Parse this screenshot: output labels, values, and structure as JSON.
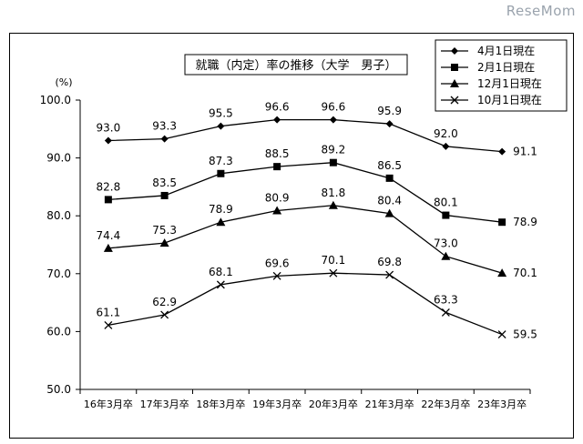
{
  "watermark": "ReseMom",
  "chart_data": {
    "type": "line",
    "title": "就職（内定）率の推移（大学　男子）",
    "yunit": "(%)",
    "ylim": [
      50,
      100
    ],
    "yticks": [
      50,
      60,
      70,
      80,
      90,
      100
    ],
    "grid": false,
    "legend_position": "top-right",
    "categories": [
      "16年3月卒",
      "17年3月卒",
      "18年3月卒",
      "19年3月卒",
      "20年3月卒",
      "21年3月卒",
      "22年3月卒",
      "23年3月卒"
    ],
    "series": [
      {
        "name": "4月1日現在",
        "marker": "diamond",
        "values": [
          93.0,
          93.3,
          95.5,
          96.6,
          96.6,
          95.9,
          92.0,
          91.1
        ],
        "labels": [
          "93.0",
          "93.3",
          "95.5",
          "96.6",
          "96.6",
          "95.9",
          "92.0",
          "91.1"
        ]
      },
      {
        "name": "2月1日現在",
        "marker": "square",
        "values": [
          82.8,
          83.5,
          87.3,
          88.5,
          89.2,
          86.5,
          80.1,
          78.9
        ],
        "labels": [
          "82.8",
          "83.5",
          "87.3",
          "88.5",
          "89.2",
          "86.5",
          "80.1",
          "78.9"
        ]
      },
      {
        "name": "12月1日現在",
        "marker": "triangle",
        "values": [
          74.4,
          75.3,
          78.9,
          80.9,
          81.8,
          80.4,
          73.0,
          70.1
        ],
        "labels": [
          "74.4",
          "75.3",
          "78.9",
          "80.9",
          "81.8",
          "80.4",
          "73.0",
          "70.1"
        ]
      },
      {
        "name": "10月1日現在",
        "marker": "cross",
        "values": [
          61.1,
          62.9,
          68.1,
          69.6,
          70.1,
          69.8,
          63.3,
          59.5
        ],
        "labels": [
          "61.1",
          "62.9",
          "68.1",
          "69.6",
          "70.1",
          "69.8",
          "63.3",
          "59.5"
        ]
      }
    ]
  }
}
